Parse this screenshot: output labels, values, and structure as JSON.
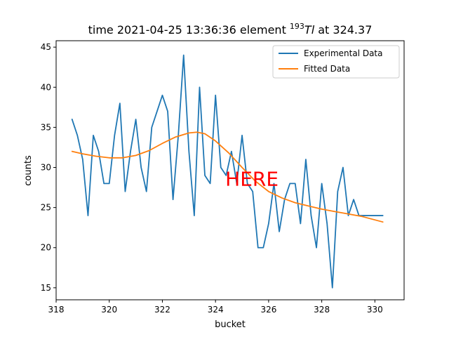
{
  "chart_data": {
    "type": "line",
    "title_prefix": "time 2021-04-25 13:36:36 element ",
    "title_isotope_mass": "193",
    "title_isotope_symbol": "Tl",
    "title_suffix": " at 324.37",
    "xlabel": "bucket",
    "ylabel": "counts",
    "xlim": [
      318,
      331.1
    ],
    "ylim": [
      13.5,
      45.8
    ],
    "xticks": [
      318,
      320,
      322,
      324,
      326,
      328,
      330
    ],
    "yticks": [
      15,
      20,
      25,
      30,
      35,
      40,
      45
    ],
    "annotation": {
      "text": "HERE",
      "x": 324.37,
      "y": 28.5,
      "color": "#ff0000"
    },
    "legend_position": "top-right",
    "series": [
      {
        "name": "Experimental Data",
        "color": "#1f77b4",
        "x": [
          318.6,
          318.8,
          319.0,
          319.2,
          319.4,
          319.6,
          319.8,
          320.0,
          320.2,
          320.4,
          320.6,
          320.8,
          321.0,
          321.2,
          321.4,
          321.6,
          321.8,
          322.0,
          322.2,
          322.4,
          322.6,
          322.8,
          323.0,
          323.2,
          323.4,
          323.6,
          323.8,
          324.0,
          324.2,
          324.4,
          324.6,
          324.8,
          325.0,
          325.2,
          325.4,
          325.6,
          325.8,
          326.0,
          326.2,
          326.4,
          326.6,
          326.8,
          327.0,
          327.2,
          327.4,
          327.6,
          327.8,
          328.0,
          328.2,
          328.4,
          328.6,
          328.8,
          329.0,
          329.2,
          329.4,
          329.6,
          329.8,
          330.0,
          330.3
        ],
        "y": [
          36,
          34,
          31,
          24,
          34,
          32,
          28,
          28,
          34,
          38,
          27,
          32,
          36,
          30,
          27,
          35,
          37,
          39,
          37,
          26,
          34,
          44,
          32,
          24,
          40,
          29,
          28,
          39,
          30,
          29,
          32,
          28,
          34,
          28,
          27,
          20,
          20,
          23,
          28,
          22,
          26,
          28,
          28,
          23,
          31,
          24,
          20,
          28,
          23,
          15,
          27,
          30,
          24,
          26,
          24,
          24,
          24,
          24,
          24
        ]
      },
      {
        "name": "Fitted Data",
        "color": "#ff7f0e",
        "x": [
          318.6,
          319.0,
          319.5,
          320.0,
          320.5,
          321.0,
          321.5,
          322.0,
          322.5,
          323.0,
          323.3,
          323.6,
          324.0,
          324.5,
          325.0,
          325.5,
          326.0,
          326.5,
          327.0,
          327.5,
          328.0,
          328.5,
          329.0,
          329.5,
          330.3
        ],
        "y": [
          32.0,
          31.7,
          31.4,
          31.2,
          31.2,
          31.5,
          32.1,
          33.0,
          33.8,
          34.3,
          34.4,
          34.2,
          33.3,
          31.8,
          30.0,
          28.3,
          27.0,
          26.2,
          25.6,
          25.2,
          24.8,
          24.5,
          24.2,
          23.9,
          23.2
        ]
      }
    ]
  }
}
